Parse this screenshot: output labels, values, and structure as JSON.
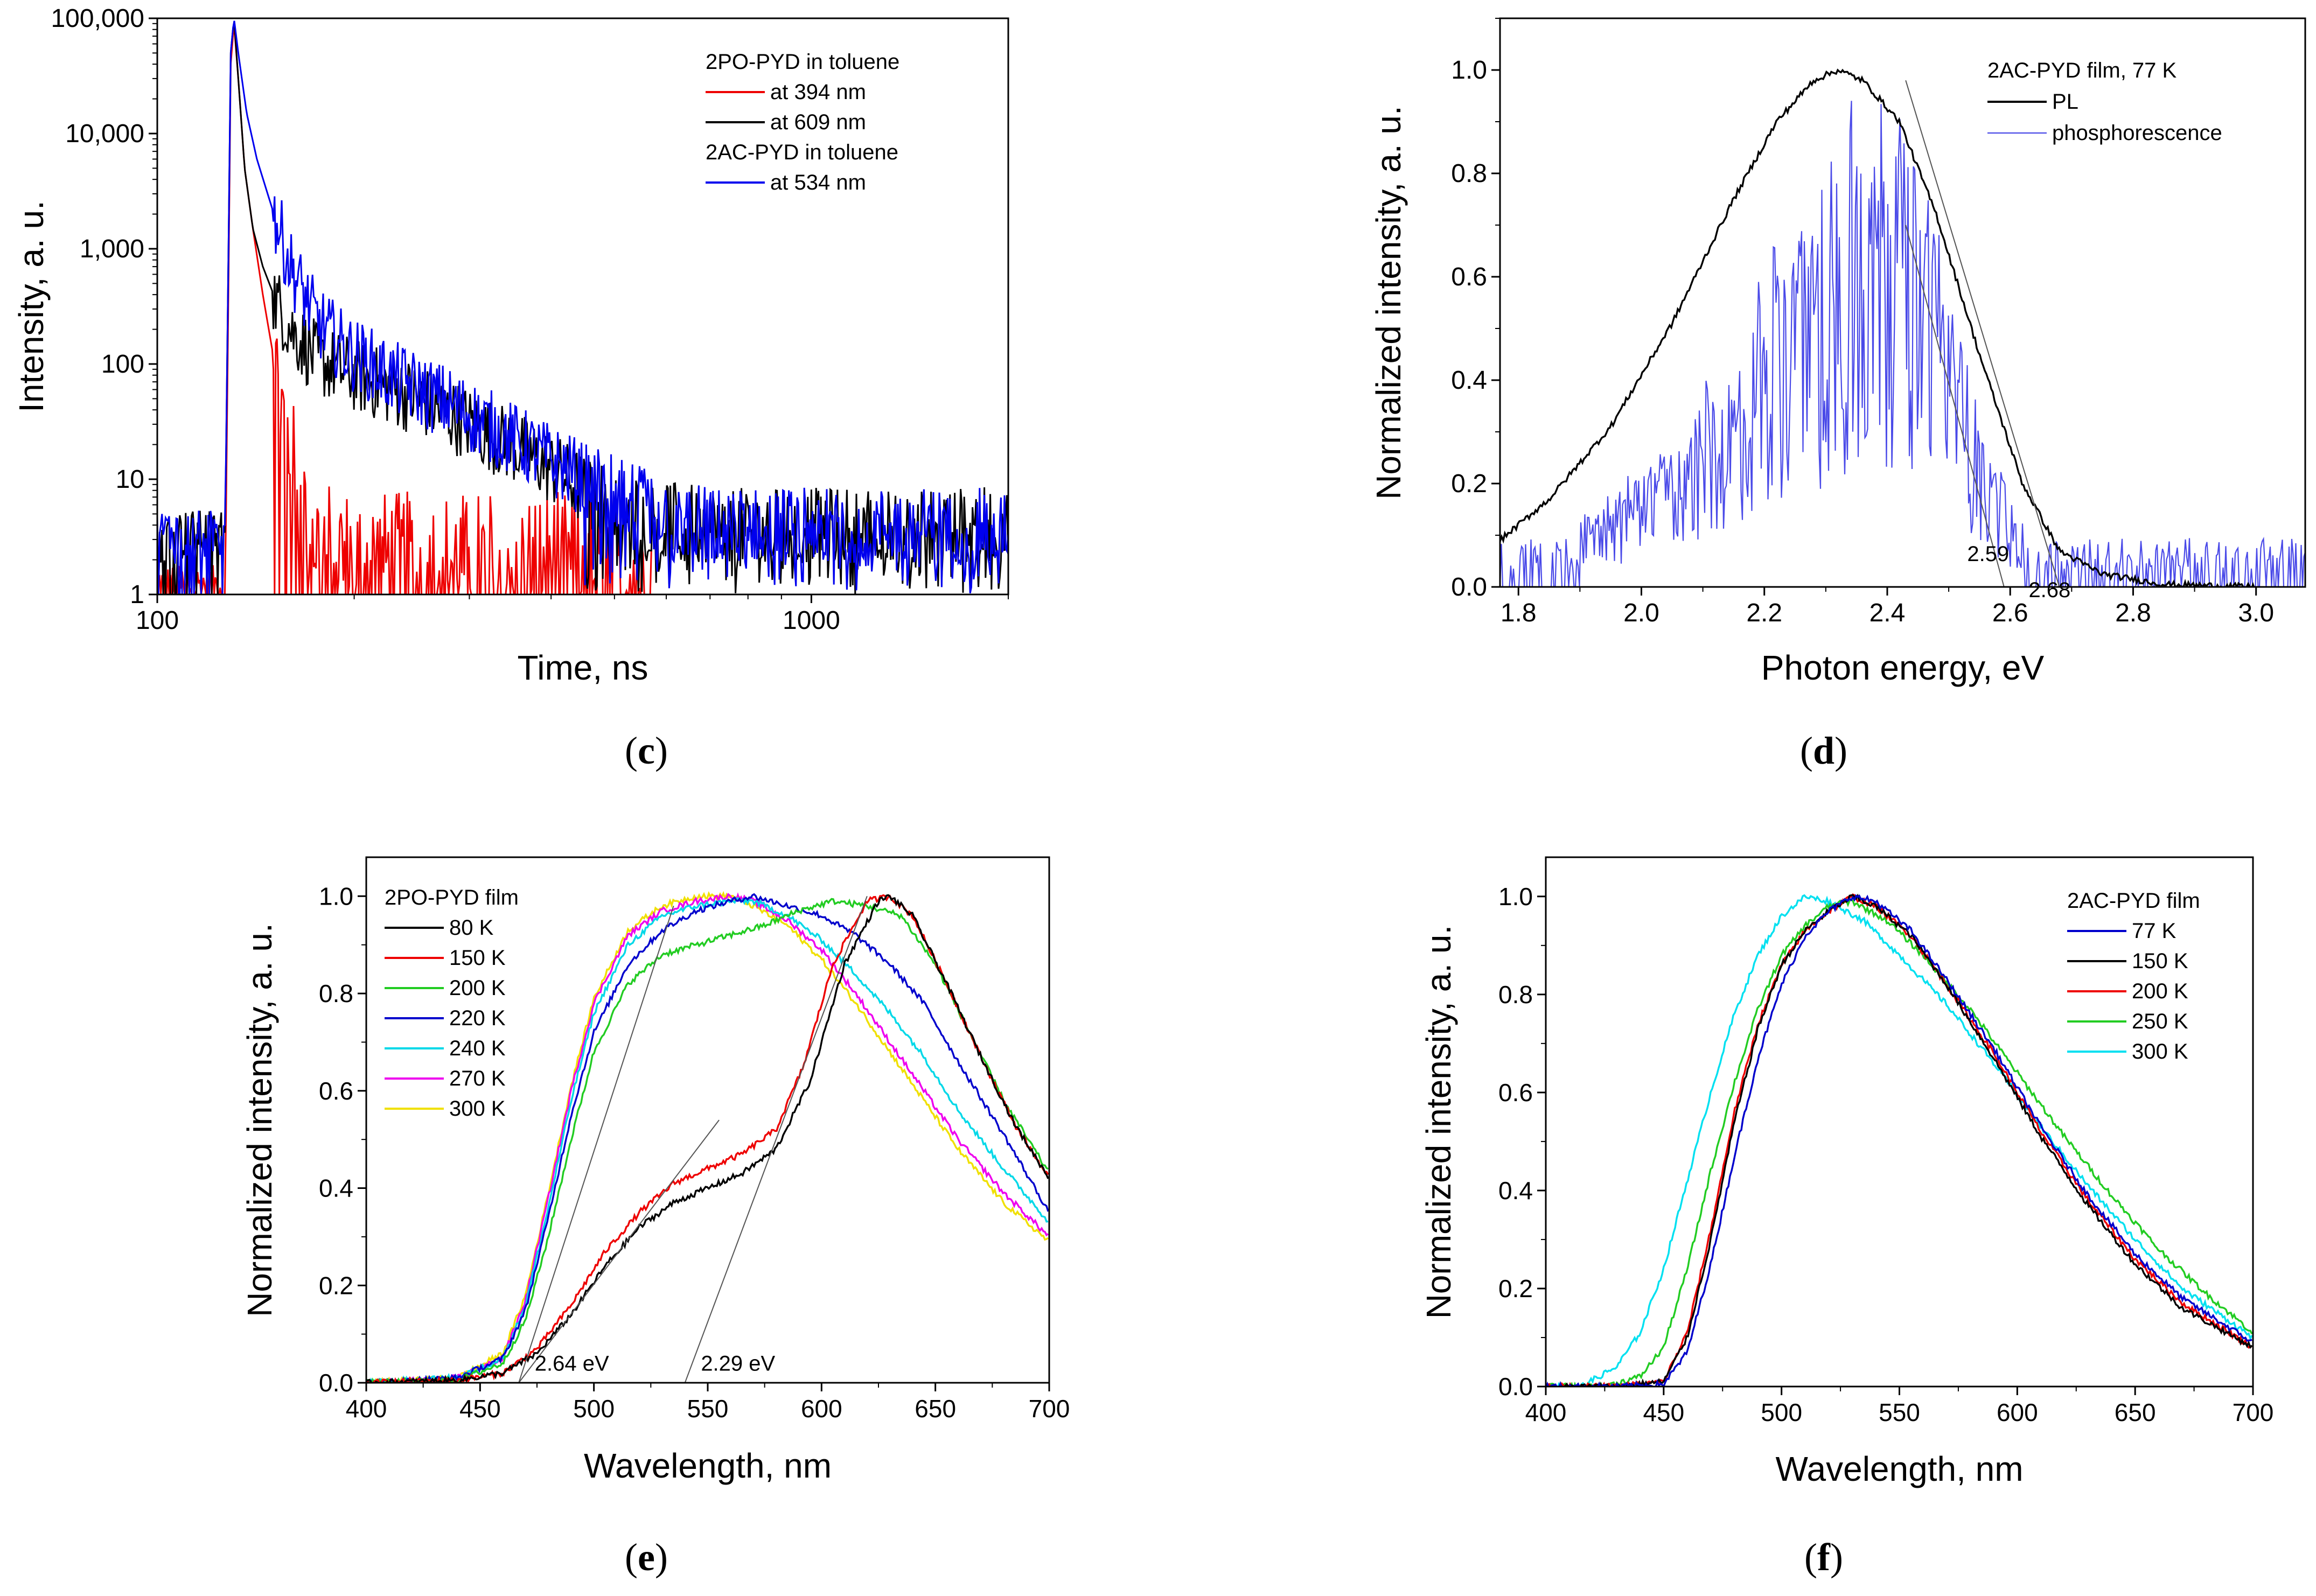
{
  "panel_labels": {
    "c": {
      "open": "(",
      "letter": "c",
      "close": ")"
    },
    "d": {
      "open": "(",
      "letter": "d",
      "close": ")"
    },
    "e": {
      "open": "(",
      "letter": "e",
      "close": ")"
    },
    "f": {
      "open": "(",
      "letter": "f",
      "close": ")"
    }
  },
  "chart_data": [
    {
      "id": "c",
      "type": "line",
      "title": "",
      "xlabel": "Time, ns",
      "ylabel": "Intensity, a. u.",
      "xscale": "log",
      "yscale": "log",
      "xlim": [
        100,
        2000
      ],
      "ylim": [
        1,
        100000
      ],
      "xticks": [
        100,
        1000
      ],
      "xtick_labels": [
        "100",
        "1000"
      ],
      "yticks": [
        1,
        10,
        100,
        1000,
        10000,
        100000
      ],
      "ytick_labels": [
        "1",
        "10",
        "100",
        "1,000",
        "10,000",
        "100,000"
      ],
      "legend_position": "top-right",
      "legend_headers": [
        "2PO-PYD  in toluene",
        "2AC-PYD in toluene"
      ],
      "series": [
        {
          "name": "at 534 nm",
          "color": "#0000ee",
          "noise": "high-noise-floor",
          "x": [
            100,
            110,
            120,
            127,
            128.5,
            129.5,
            131,
            133,
            137,
            142,
            150,
            160,
            175,
            195,
            230,
            280,
            350,
            450,
            550,
            700,
            900,
            1200,
            1600,
            2000
          ],
          "y": [
            3,
            3,
            3.2,
            4,
            1000,
            50000,
            100000,
            50000,
            15000,
            6000,
            2200,
            700,
            240,
            130,
            75,
            45,
            22,
            10,
            6,
            4,
            4,
            4,
            4,
            4
          ]
        },
        {
          "name": "at 609 nm",
          "color": "#000000",
          "noise": "medium-noise-floor",
          "x": [
            100,
            115,
            120,
            127,
            128.5,
            129.5,
            131,
            133,
            136,
            140,
            145,
            152,
            160,
            175,
            200,
            250,
            300,
            380,
            450,
            550,
            700,
            1000,
            1500,
            2000
          ],
          "y": [
            3,
            3,
            3,
            3.5,
            1000,
            50000,
            100000,
            30000,
            5000,
            1500,
            700,
            350,
            200,
            110,
            80,
            50,
            30,
            15,
            8,
            5,
            4,
            4,
            4,
            4
          ]
        },
        {
          "name": "at 394 nm",
          "color": "#ee0000",
          "noise": "decays-to-noise",
          "x": [
            100,
            120,
            127,
            128.5,
            129.5,
            131,
            133,
            136,
            140,
            145,
            150,
            155,
            160,
            165,
            175,
            200,
            300,
            500,
            570
          ],
          "y": [
            1,
            1,
            1,
            500,
            40000,
            90000,
            30000,
            5000,
            1500,
            400,
            130,
            40,
            15,
            7,
            3,
            2,
            2,
            2,
            2
          ]
        }
      ],
      "annotations": []
    },
    {
      "id": "d",
      "type": "line",
      "title": "",
      "xlabel": "Photon energy, eV",
      "ylabel": "Normalized intensity, a. u.",
      "xlim": [
        1.77,
        3.08
      ],
      "ylim": [
        0,
        1.1
      ],
      "xticks": [
        1.8,
        2.0,
        2.2,
        2.4,
        2.6,
        2.8,
        3.0
      ],
      "xtick_labels": [
        "1.8",
        "2.0",
        "2.2",
        "2.4",
        "2.6",
        "2.8",
        "3.0"
      ],
      "yticks": [
        0,
        0.2,
        0.4,
        0.6,
        0.8,
        1.0
      ],
      "ytick_labels": [
        "0.0",
        "0.2",
        "0.4",
        "0.6",
        "0.8",
        "1.0"
      ],
      "legend_position": "top-right",
      "legend_headers": [
        "2AC-PYD film, 77 K"
      ],
      "series": [
        {
          "name": "PL",
          "color": "#000000",
          "noise": "low",
          "x": [
            1.77,
            1.85,
            1.95,
            2.05,
            2.15,
            2.22,
            2.28,
            2.32,
            2.36,
            2.42,
            2.48,
            2.55,
            2.62,
            2.68,
            2.75,
            2.85,
            3.0
          ],
          "y": [
            0.09,
            0.17,
            0.31,
            0.51,
            0.75,
            0.9,
            0.98,
            1.0,
            0.98,
            0.9,
            0.72,
            0.45,
            0.2,
            0.07,
            0.025,
            0.005,
            0.0
          ]
        },
        {
          "name": "phosphorescence",
          "color": "#4a4ae8",
          "noise": "very-high",
          "x": [
            1.77,
            1.85,
            1.95,
            2.05,
            2.12,
            2.2,
            2.28,
            2.35,
            2.4,
            2.45,
            2.5,
            2.55,
            2.6,
            2.7,
            2.8,
            3.07
          ],
          "y": [
            0.05,
            0.06,
            0.1,
            0.17,
            0.24,
            0.35,
            0.46,
            0.54,
            0.57,
            0.52,
            0.37,
            0.21,
            0.09,
            0.04,
            0.04,
            0.04
          ]
        }
      ],
      "tangent_lines": [
        {
          "x": [
            2.43,
            2.68
          ],
          "y": [
            0.98,
            0.0
          ]
        },
        {
          "x": [
            2.43,
            2.59
          ],
          "y": [
            0.7,
            0.0
          ]
        }
      ],
      "annotations": [
        {
          "text": "2.59",
          "x": 2.53,
          "y": 0.05
        },
        {
          "text": "2.68",
          "x": 2.63,
          "y": -0.02
        }
      ]
    },
    {
      "id": "e",
      "type": "line",
      "title": "",
      "xlabel": "Wavelength, nm",
      "ylabel": "Normalized intensity, a. u.",
      "xlim": [
        400,
        700
      ],
      "ylim": [
        0,
        1.08
      ],
      "xticks": [
        400,
        450,
        500,
        550,
        600,
        650,
        700
      ],
      "xtick_labels": [
        "400",
        "450",
        "500",
        "550",
        "600",
        "650",
        "700"
      ],
      "yticks": [
        0,
        0.2,
        0.4,
        0.6,
        0.8,
        1.0
      ],
      "ytick_labels": [
        "0.0",
        "0.2",
        "0.4",
        "0.6",
        "0.8",
        "1.0"
      ],
      "legend_position": "top-left",
      "legend_headers": [
        "2PO-PYD film"
      ],
      "series": [
        {
          "name": "80 K",
          "color": "#000000",
          "x": [
            400,
            440,
            460,
            475,
            490,
            505,
            520,
            535,
            550,
            565,
            580,
            595,
            610,
            625,
            630,
            640,
            655,
            670,
            685,
            700
          ],
          "y": [
            0.0,
            0.005,
            0.02,
            0.06,
            0.14,
            0.24,
            0.32,
            0.37,
            0.4,
            0.43,
            0.48,
            0.62,
            0.86,
            0.99,
            1.0,
            0.96,
            0.82,
            0.67,
            0.53,
            0.42
          ]
        },
        {
          "name": "150 K",
          "color": "#ee0000",
          "x": [
            400,
            440,
            460,
            475,
            490,
            505,
            520,
            535,
            550,
            565,
            580,
            592,
            605,
            620,
            630,
            640,
            655,
            670,
            685,
            700
          ],
          "y": [
            0.0,
            0.005,
            0.02,
            0.07,
            0.16,
            0.27,
            0.35,
            0.41,
            0.44,
            0.47,
            0.52,
            0.65,
            0.86,
            0.99,
            1.0,
            0.96,
            0.82,
            0.67,
            0.53,
            0.42
          ]
        },
        {
          "name": "200 K",
          "color": "#22cc22",
          "x": [
            400,
            440,
            460,
            470,
            480,
            490,
            500,
            515,
            530,
            545,
            560,
            575,
            590,
            605,
            620,
            635,
            650,
            665,
            680,
            700
          ],
          "y": [
            0.0,
            0.005,
            0.04,
            0.13,
            0.3,
            0.5,
            0.68,
            0.82,
            0.88,
            0.9,
            0.92,
            0.94,
            0.97,
            0.99,
            0.98,
            0.96,
            0.86,
            0.72,
            0.58,
            0.43
          ]
        },
        {
          "name": "220 K",
          "color": "#0000cc",
          "x": [
            400,
            440,
            460,
            470,
            480,
            490,
            500,
            515,
            530,
            545,
            560,
            570,
            585,
            600,
            615,
            630,
            645,
            660,
            680,
            700
          ],
          "y": [
            0.0,
            0.01,
            0.05,
            0.15,
            0.34,
            0.55,
            0.72,
            0.86,
            0.93,
            0.97,
            0.99,
            1.0,
            0.98,
            0.96,
            0.92,
            0.86,
            0.78,
            0.66,
            0.51,
            0.35
          ]
        },
        {
          "name": "240 K",
          "color": "#00d8e8",
          "x": [
            400,
            440,
            460,
            470,
            480,
            490,
            500,
            515,
            530,
            545,
            560,
            570,
            585,
            600,
            615,
            630,
            645,
            660,
            680,
            700
          ],
          "y": [
            0.0,
            0.01,
            0.05,
            0.16,
            0.36,
            0.58,
            0.76,
            0.9,
            0.96,
            0.98,
            0.99,
            0.99,
            0.96,
            0.91,
            0.84,
            0.76,
            0.67,
            0.56,
            0.44,
            0.33
          ]
        },
        {
          "name": "270 K",
          "color": "#ee00ee",
          "x": [
            400,
            440,
            460,
            470,
            480,
            490,
            500,
            515,
            530,
            545,
            560,
            570,
            585,
            600,
            615,
            630,
            645,
            660,
            680,
            700
          ],
          "y": [
            0.0,
            0.01,
            0.05,
            0.17,
            0.38,
            0.6,
            0.78,
            0.92,
            0.97,
            0.99,
            1.0,
            0.99,
            0.95,
            0.89,
            0.8,
            0.7,
            0.6,
            0.5,
            0.39,
            0.3
          ]
        },
        {
          "name": "300 K",
          "color": "#f0e000",
          "x": [
            400,
            440,
            460,
            470,
            480,
            490,
            500,
            515,
            530,
            545,
            560,
            570,
            585,
            600,
            615,
            630,
            645,
            660,
            680,
            700
          ],
          "y": [
            0.0,
            0.01,
            0.06,
            0.18,
            0.39,
            0.61,
            0.79,
            0.93,
            0.98,
            1.0,
            1.0,
            0.98,
            0.94,
            0.87,
            0.78,
            0.68,
            0.58,
            0.48,
            0.37,
            0.29
          ]
        }
      ],
      "tangent_lines": [
        {
          "x": [
            467,
            535
          ],
          "y": [
            0.0,
            0.98
          ]
        },
        {
          "x": [
            467,
            555
          ],
          "y": [
            0.0,
            0.54
          ]
        },
        {
          "x": [
            540,
            620
          ],
          "y": [
            0.0,
            1.0
          ]
        }
      ],
      "annotations": [
        {
          "text": "2.64 eV",
          "x": 474,
          "y": 0.025
        },
        {
          "text": "2.29 eV",
          "x": 547,
          "y": 0.025
        }
      ]
    },
    {
      "id": "f",
      "type": "line",
      "title": "",
      "xlabel": "Wavelength, nm",
      "ylabel": "Normalized intensity, a. u.",
      "xlim": [
        400,
        700
      ],
      "ylim": [
        0,
        1.08
      ],
      "xticks": [
        400,
        450,
        500,
        550,
        600,
        650,
        700
      ],
      "xtick_labels": [
        "400",
        "450",
        "500",
        "550",
        "600",
        "650",
        "700"
      ],
      "yticks": [
        0,
        0.2,
        0.4,
        0.6,
        0.8,
        1.0
      ],
      "ytick_labels": [
        "0.0",
        "0.2",
        "0.4",
        "0.6",
        "0.8",
        "1.0"
      ],
      "legend_position": "top-right",
      "legend_headers": [
        "2AC-PYD film"
      ],
      "series": [
        {
          "name": "77 K",
          "color": "#0000cc",
          "x": [
            400,
            430,
            450,
            460,
            470,
            480,
            490,
            500,
            510,
            520,
            530,
            540,
            555,
            570,
            590,
            610,
            630,
            650,
            670,
            700
          ],
          "y": [
            0.0,
            0.0,
            0.005,
            0.07,
            0.25,
            0.47,
            0.67,
            0.82,
            0.92,
            0.97,
            1.0,
            0.99,
            0.93,
            0.83,
            0.69,
            0.53,
            0.39,
            0.27,
            0.18,
            0.09
          ]
        },
        {
          "name": "150 K",
          "color": "#000000",
          "x": [
            400,
            430,
            450,
            460,
            470,
            480,
            490,
            500,
            510,
            520,
            530,
            540,
            555,
            570,
            590,
            610,
            630,
            650,
            670,
            700
          ],
          "y": [
            0.0,
            0.0,
            0.01,
            0.1,
            0.3,
            0.54,
            0.73,
            0.86,
            0.93,
            0.97,
            1.0,
            0.98,
            0.92,
            0.82,
            0.67,
            0.51,
            0.37,
            0.25,
            0.16,
            0.08
          ]
        },
        {
          "name": "200 K",
          "color": "#ee0000",
          "x": [
            400,
            430,
            450,
            460,
            470,
            480,
            490,
            500,
            510,
            520,
            530,
            540,
            555,
            570,
            590,
            610,
            630,
            650,
            670,
            700
          ],
          "y": [
            0.0,
            0.0,
            0.01,
            0.11,
            0.32,
            0.56,
            0.74,
            0.86,
            0.93,
            0.97,
            1.0,
            0.98,
            0.92,
            0.82,
            0.68,
            0.52,
            0.38,
            0.26,
            0.17,
            0.08
          ]
        },
        {
          "name": "250 K",
          "color": "#22cc22",
          "x": [
            400,
            425,
            440,
            450,
            460,
            470,
            480,
            490,
            500,
            510,
            520,
            530,
            545,
            560,
            580,
            600,
            620,
            640,
            660,
            680,
            700
          ],
          "y": [
            0.0,
            0.0,
            0.02,
            0.08,
            0.24,
            0.44,
            0.62,
            0.77,
            0.88,
            0.94,
            0.98,
            0.99,
            0.95,
            0.88,
            0.77,
            0.64,
            0.51,
            0.39,
            0.28,
            0.19,
            0.11
          ]
        },
        {
          "name": "300 K",
          "color": "#00e0f0",
          "x": [
            400,
            415,
            430,
            440,
            450,
            460,
            470,
            480,
            490,
            500,
            510,
            520,
            535,
            550,
            570,
            590,
            610,
            630,
            650,
            670,
            700
          ],
          "y": [
            0.0,
            0.0,
            0.04,
            0.11,
            0.24,
            0.42,
            0.6,
            0.76,
            0.88,
            0.96,
            1.0,
            0.99,
            0.95,
            0.88,
            0.78,
            0.66,
            0.53,
            0.41,
            0.3,
            0.2,
            0.1
          ]
        }
      ],
      "annotations": []
    }
  ]
}
